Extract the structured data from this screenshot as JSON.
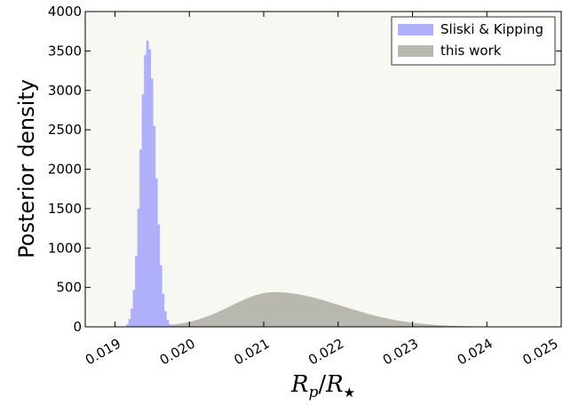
{
  "chart_data": {
    "type": "histogram",
    "xlabel": {
      "base": "R",
      "sub1": "p",
      "sep": "/",
      "base2": "R",
      "sub2": "★"
    },
    "ylabel": "Posterior density",
    "xlim": [
      0.0186,
      0.025
    ],
    "ylim": [
      0,
      4000
    ],
    "x_ticks": [
      "0.019",
      "0.020",
      "0.021",
      "0.022",
      "0.023",
      "0.024",
      "0.025"
    ],
    "y_ticks": [
      "0",
      "500",
      "1000",
      "1500",
      "2000",
      "2500",
      "3000",
      "3500",
      "4000"
    ],
    "grid": false,
    "legend_position": "top-right",
    "background_color": "#f8f8f2",
    "series": [
      {
        "name": "Sliski & Kipping",
        "color": "#b0b0fa",
        "bin_width": 3e-05,
        "bins": [
          [
            0.01915,
            30
          ],
          [
            0.01918,
            100
          ],
          [
            0.01921,
            230
          ],
          [
            0.01924,
            470
          ],
          [
            0.01927,
            900
          ],
          [
            0.0193,
            1500
          ],
          [
            0.01933,
            2250
          ],
          [
            0.01936,
            2950
          ],
          [
            0.01939,
            3450
          ],
          [
            0.01942,
            3630
          ],
          [
            0.01945,
            3520
          ],
          [
            0.01948,
            3150
          ],
          [
            0.01951,
            2550
          ],
          [
            0.01954,
            1880
          ],
          [
            0.01957,
            1300
          ],
          [
            0.0196,
            780
          ],
          [
            0.01963,
            420
          ],
          [
            0.01966,
            200
          ],
          [
            0.01969,
            90
          ],
          [
            0.01972,
            35
          ]
        ]
      },
      {
        "name": "this work",
        "color": "#b8b8b0",
        "mu": 0.02114,
        "sigma_left": 0.00058,
        "sigma_right": 0.0009,
        "peak": 440,
        "bin_width": 2e-05,
        "range": [
          0.0193,
          0.0246
        ]
      }
    ]
  }
}
